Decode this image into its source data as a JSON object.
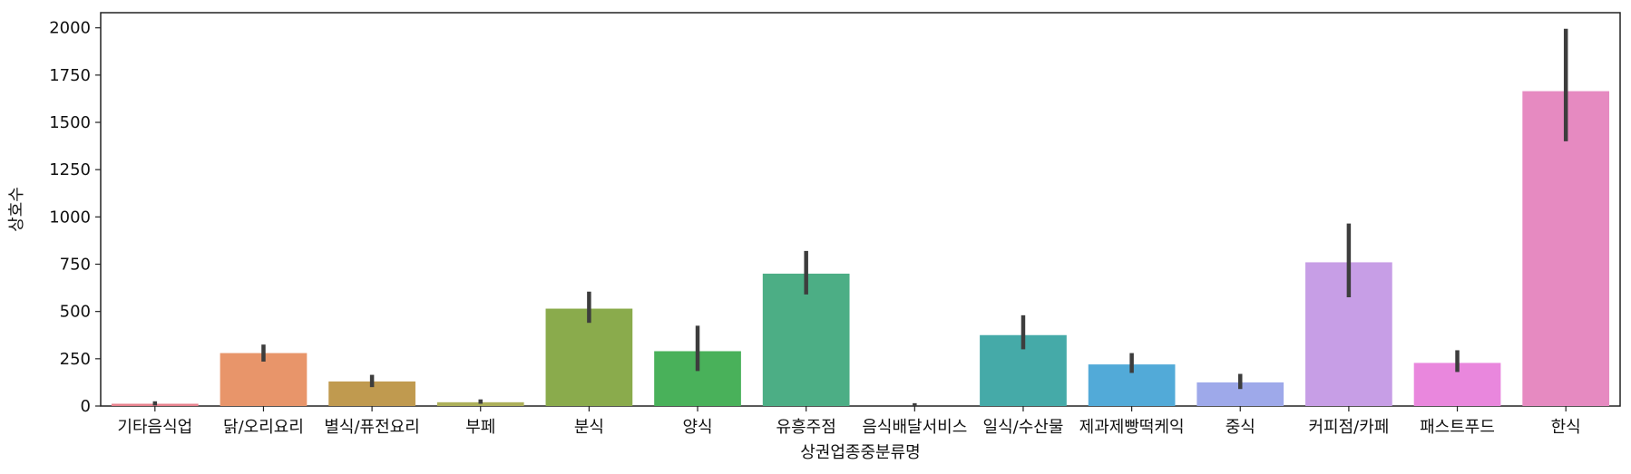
{
  "chart_data": {
    "type": "bar",
    "xlabel": "상권업종중분류명",
    "ylabel": "상호수",
    "ylim": [
      0,
      2080
    ],
    "yticks": [
      0,
      250,
      500,
      750,
      1000,
      1250,
      1500,
      1750,
      2000
    ],
    "grid": false,
    "categories": [
      "기타음식업",
      "닭/오리요리",
      "별식/퓨전요리",
      "부페",
      "분식",
      "양식",
      "유흥주점",
      "음식배달서비스",
      "일식/수산물",
      "제과제빵떡케익",
      "중식",
      "커피점/카페",
      "패스트푸드",
      "한식"
    ],
    "values": [
      12,
      280,
      130,
      20,
      515,
      290,
      700,
      0,
      375,
      220,
      125,
      760,
      228,
      1665
    ],
    "error_low": [
      3,
      235,
      100,
      12,
      440,
      185,
      590,
      0,
      300,
      175,
      90,
      575,
      180,
      1400
    ],
    "error_high": [
      25,
      325,
      165,
      35,
      605,
      425,
      820,
      15,
      480,
      280,
      170,
      965,
      295,
      1995
    ],
    "colors": [
      "#e8828e",
      "#e8956a",
      "#c09a4f",
      "#adb05a",
      "#8aab4c",
      "#49b15a",
      "#4cae85",
      "#4fae9e",
      "#45aaa8",
      "#52aad8",
      "#9ea9ea",
      "#c79ee6",
      "#e987dd",
      "#e68ac1"
    ]
  }
}
